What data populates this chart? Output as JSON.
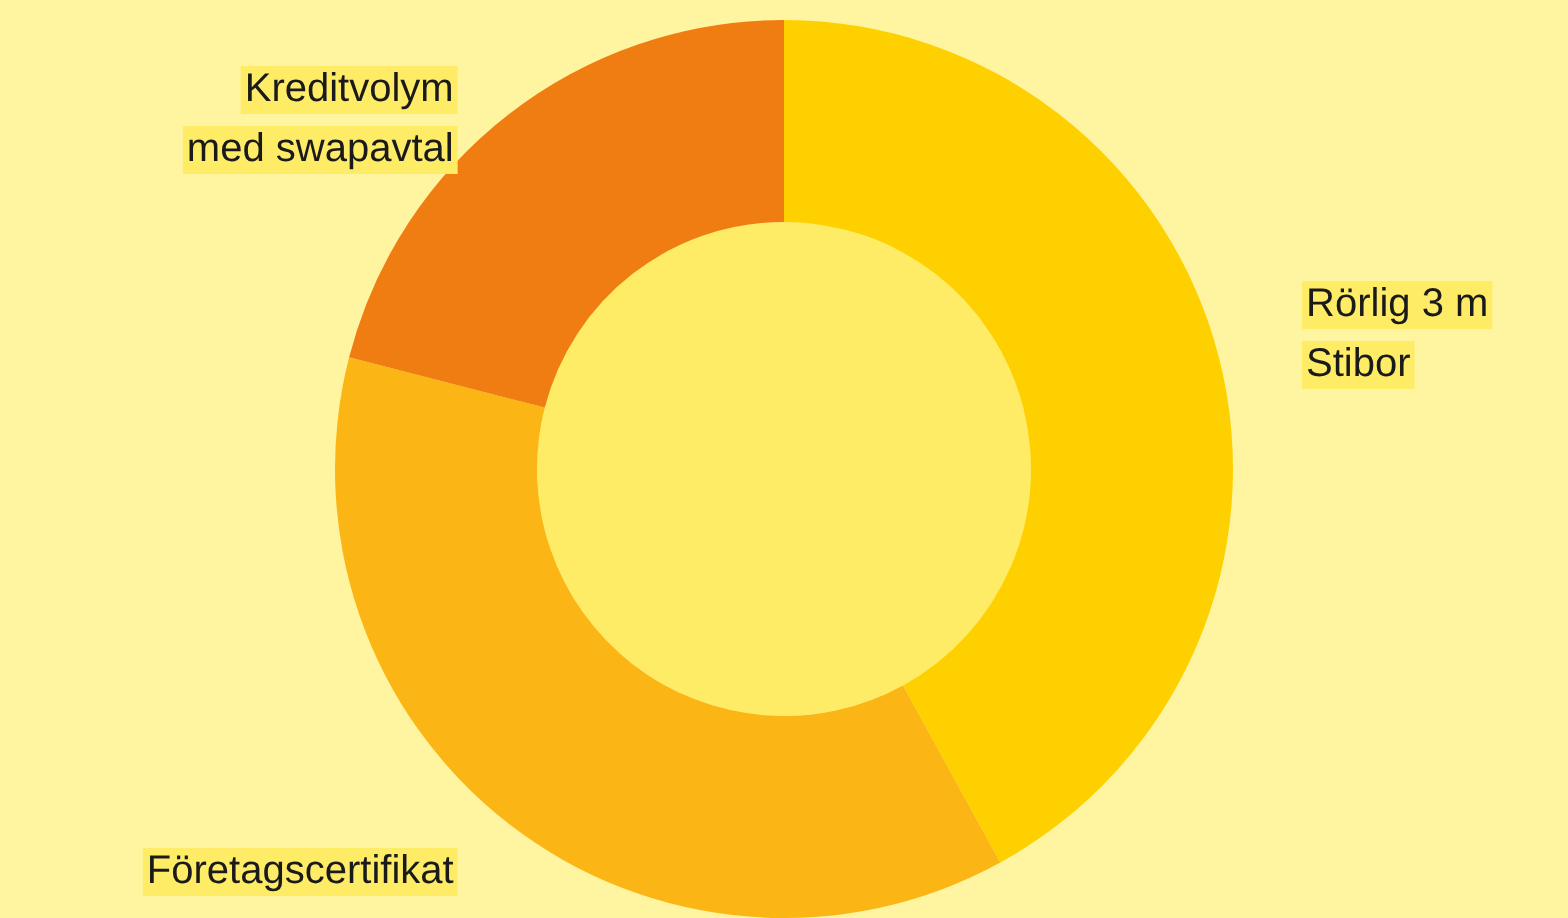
{
  "chart_data": {
    "type": "donut",
    "categories": [
      "Rörlig 3 m Stibor",
      "Företagscertifikat",
      "Kreditvolym med swapavtal"
    ],
    "values": [
      42,
      37,
      21
    ],
    "colors": [
      "#ffd000",
      "#fbb515",
      "#f07d12"
    ],
    "legend": false
  }
}
